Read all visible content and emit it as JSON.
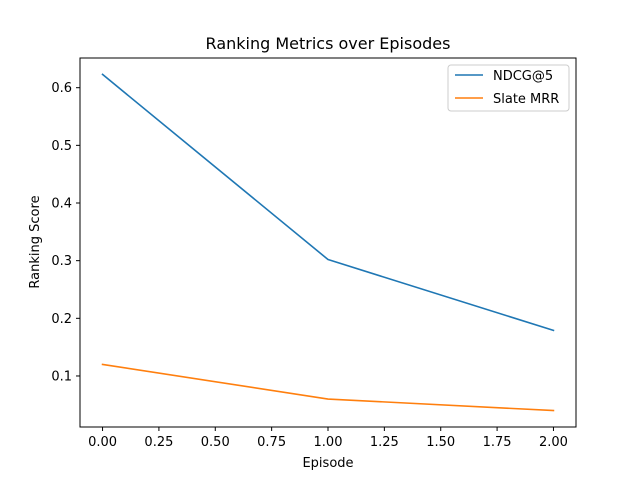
{
  "chart_data": {
    "type": "line",
    "title": "Ranking Metrics over Episodes",
    "xlabel": "Episode",
    "ylabel": "Ranking Score",
    "x": [
      0,
      1,
      2
    ],
    "xlim": [
      -0.1,
      2.1
    ],
    "ylim": [
      0.0115,
      0.6515
    ],
    "xticks": [
      0.0,
      0.25,
      0.5,
      0.75,
      1.0,
      1.25,
      1.5,
      1.75,
      2.0
    ],
    "xtick_labels": [
      "0.00",
      "0.25",
      "0.50",
      "0.75",
      "1.00",
      "1.25",
      "1.50",
      "1.75",
      "2.00"
    ],
    "yticks": [
      0.1,
      0.2,
      0.3,
      0.4,
      0.5,
      0.6
    ],
    "ytick_labels": [
      "0.1",
      "0.2",
      "0.3",
      "0.4",
      "0.5",
      "0.6"
    ],
    "grid": false,
    "legend_position": "top-right",
    "series": [
      {
        "name": "NDCG@5",
        "color": "#1f77b4",
        "values": [
          0.623,
          0.302,
          0.179
        ]
      },
      {
        "name": "Slate MRR",
        "color": "#ff7f0e",
        "values": [
          0.12,
          0.06,
          0.04
        ]
      }
    ]
  }
}
